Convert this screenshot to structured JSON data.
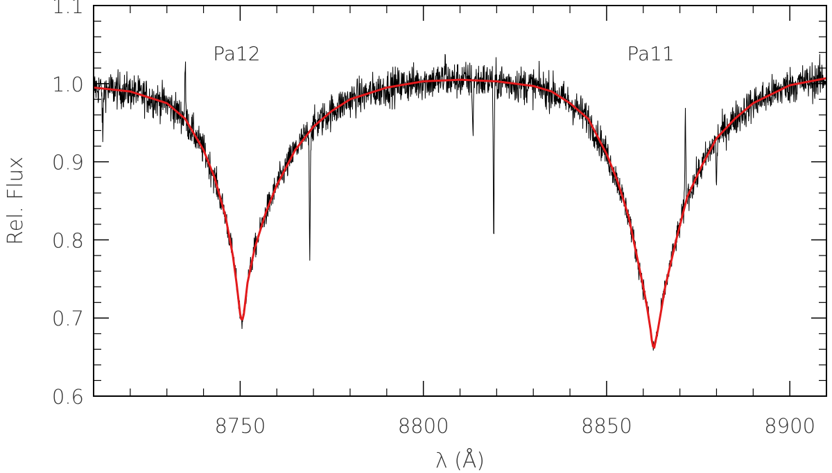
{
  "chart_data": {
    "type": "line",
    "xlabel": "λ (Å)",
    "ylabel": "Rel. Flux",
    "xlim": [
      8710,
      8910
    ],
    "ylim": [
      0.6,
      1.1
    ],
    "xticks": [
      8750,
      8800,
      8850,
      8900
    ],
    "xtick_labels": [
      "8750",
      "8800",
      "8850",
      "8900"
    ],
    "yticks": [
      0.6,
      0.7,
      0.8,
      0.9,
      1.0,
      1.1
    ],
    "ytick_labels": [
      "0.6",
      "0.7",
      "0.8",
      "0.9",
      "1.0",
      "1.1"
    ],
    "grid": false,
    "annotations": [
      {
        "text": "Pa12",
        "x": 8750,
        "y": 1.03
      },
      {
        "text": "Pa11",
        "x": 8863,
        "y": 1.03
      }
    ],
    "series": [
      {
        "role": "observed",
        "color": "#000000",
        "noise_level": 0.012,
        "line_dips": [
          {
            "x": 8712.5,
            "y": 0.93
          },
          {
            "x": 8769.0,
            "y": 0.79
          },
          {
            "x": 8813.5,
            "y": 0.935
          },
          {
            "x": 8819.2,
            "y": 0.8
          },
          {
            "x": 8880.0,
            "y": 0.87
          }
        ],
        "line_spikes": [
          {
            "x": 8735.0,
            "y": 1.02
          },
          {
            "x": 8806.0,
            "y": 1.03
          },
          {
            "x": 8871.5,
            "y": 0.96
          }
        ]
      },
      {
        "role": "model",
        "color": "#e31a1c",
        "x": [
          8710,
          8720,
          8730,
          8735,
          8740,
          8743,
          8746,
          8748,
          8749,
          8750,
          8750.5,
          8751,
          8752,
          8754,
          8757,
          8760,
          8765,
          8770,
          8775,
          8780,
          8790,
          8800,
          8810,
          8820,
          8830,
          8835,
          8840,
          8845,
          8850,
          8853,
          8856,
          8858,
          8860,
          8861,
          8862,
          8862.5,
          8863,
          8864,
          8866,
          8869,
          8872,
          8876,
          8880,
          8885,
          8890,
          8900,
          8910
        ],
        "y": [
          0.995,
          0.99,
          0.975,
          0.955,
          0.915,
          0.88,
          0.83,
          0.78,
          0.745,
          0.705,
          0.695,
          0.705,
          0.745,
          0.79,
          0.835,
          0.87,
          0.915,
          0.945,
          0.965,
          0.98,
          0.995,
          1.003,
          1.005,
          1.003,
          0.997,
          0.99,
          0.975,
          0.955,
          0.91,
          0.875,
          0.83,
          0.785,
          0.74,
          0.715,
          0.685,
          0.665,
          0.662,
          0.685,
          0.74,
          0.8,
          0.855,
          0.895,
          0.93,
          0.955,
          0.975,
          0.998,
          1.007
        ]
      }
    ]
  }
}
